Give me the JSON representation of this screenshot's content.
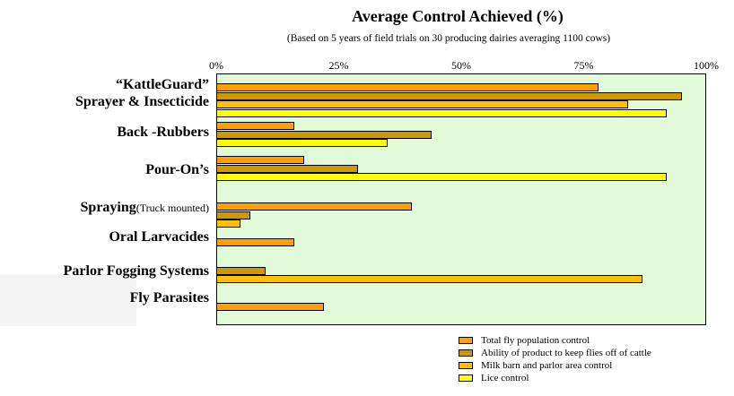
{
  "chart_data": {
    "type": "bar",
    "orientation": "horizontal",
    "title": "Average Control Achieved (%)",
    "subtitle": "(Based on 5 years of field trials on 30 producing dairies averaging 1100 cows)",
    "xlim": [
      0,
      100
    ],
    "x_tick_labels": [
      "0%",
      "25%",
      "50%",
      "75%",
      "100%"
    ],
    "grid": false,
    "legend_position": "bottom-right",
    "plot_background": "#E1FAD7",
    "series": [
      {
        "name": "Total fly population control",
        "color": "#FFA000"
      },
      {
        "name": "Ability of product to keep flies off of cattle",
        "color": "#CC9900"
      },
      {
        "name": "Milk barn and parlor area control",
        "color": "#FFC000"
      },
      {
        "name": "Lice control",
        "color": "#FFFF00"
      }
    ],
    "categories": [
      {
        "label": "“KattleGuard” Sprayer & Insecticide",
        "label_lines": [
          "“KattleGuard”",
          "Sprayer & Insecticide"
        ],
        "bars": [
          {
            "series": 0,
            "value": 78
          },
          {
            "series": 1,
            "value": 95
          },
          {
            "series": 2,
            "value": 84
          },
          {
            "series": 3,
            "value": 92
          }
        ]
      },
      {
        "label": "Back -Rubbers",
        "label_lines": [
          "Back -Rubbers"
        ],
        "bars": [
          {
            "series": 0,
            "value": 16
          },
          {
            "series": 1,
            "value": 44
          },
          {
            "series": 3,
            "value": 35
          }
        ]
      },
      {
        "label": "Pour-On’s",
        "label_lines": [
          "Pour-On’s"
        ],
        "bars": [
          {
            "series": 0,
            "value": 18
          },
          {
            "series": 1,
            "value": 29
          },
          {
            "series": 3,
            "value": 92
          }
        ]
      },
      {
        "label": "Spraying(Truck mounted)",
        "label_main": "Spraying",
        "label_suffix": "(Truck mounted)",
        "bars": [
          {
            "series": 0,
            "value": 40
          },
          {
            "series": 1,
            "value": 7
          },
          {
            "series": 2,
            "value": 5
          }
        ]
      },
      {
        "label": "Oral Larvacides",
        "label_lines": [
          "Oral Larvacides"
        ],
        "bars": [
          {
            "series": 0,
            "value": 16
          }
        ]
      },
      {
        "label": "Parlor Fogging Systems",
        "label_lines": [
          "Parlor Fogging Systems"
        ],
        "bars": [
          {
            "series": 1,
            "value": 10
          },
          {
            "series": 2,
            "value": 87
          }
        ]
      },
      {
        "label": "Fly Parasites",
        "label_lines": [
          "Fly Parasites"
        ],
        "bars": [
          {
            "series": 0,
            "value": 22
          }
        ]
      }
    ]
  }
}
